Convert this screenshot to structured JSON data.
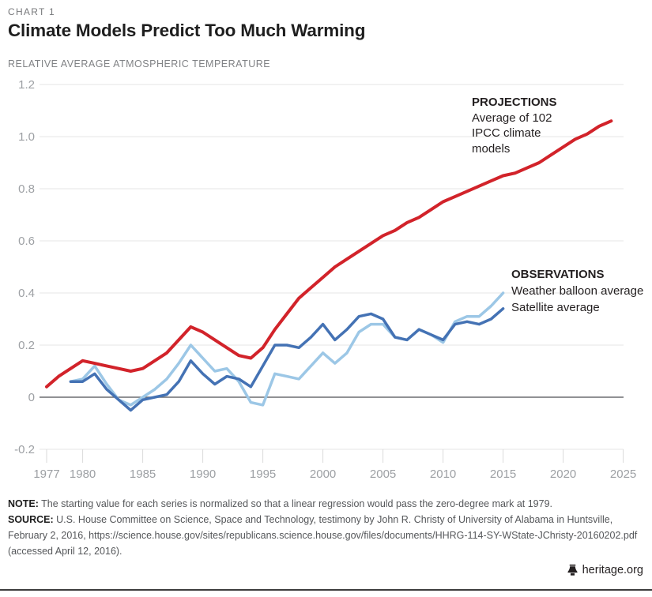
{
  "kicker": "CHART 1",
  "title": "Climate Models Predict Too Much Warming",
  "subtitle": "RELATIVE AVERAGE ATMOSPHERIC TEMPERATURE",
  "annotations": {
    "projections": {
      "heading": "PROJECTIONS",
      "lines": [
        "Average of 102",
        "IPCC climate",
        "models"
      ]
    },
    "observations": {
      "heading": "OBSERVATIONS",
      "lines": [
        "Weather balloon average",
        "Satellite average"
      ]
    }
  },
  "chart_data": {
    "type": "line",
    "title": "Climate Models Predict Too Much Warming",
    "ylabel": "RELATIVE AVERAGE ATMOSPHERIC TEMPERATURE",
    "xlabel": "",
    "ylim": [
      -0.2,
      1.2
    ],
    "xlim": [
      1976,
      2026
    ],
    "grid": "horizontal gridlines only, darker zero line",
    "legend_position": "inline annotations at line ends",
    "yticks": {
      "values": [
        1.2,
        1.0,
        0.8,
        0.6,
        0.4,
        0.2,
        0,
        -0.2
      ],
      "labels": [
        "1.2",
        "1.0",
        "0.8",
        "0.6",
        "0.4",
        "0.2",
        "0",
        "-0.2"
      ]
    },
    "xticks": [
      1977,
      1980,
      1985,
      1990,
      1995,
      2000,
      2005,
      2010,
      2015,
      2020,
      2025
    ],
    "colors": {
      "grid": "#e4e4e4",
      "zero_line": "#6b6d70",
      "tick_text": "#9da0a4"
    },
    "series": [
      {
        "id": "weather-balloon",
        "name": "Weather balloon average",
        "color": "#9cc7e6",
        "width": 3.5,
        "x": [
          1979,
          1980,
          1981,
          1982,
          1983,
          1984,
          1985,
          1986,
          1987,
          1988,
          1989,
          1990,
          1991,
          1992,
          1993,
          1994,
          1995,
          1996,
          1997,
          1998,
          1999,
          2000,
          2001,
          2002,
          2003,
          2004,
          2005,
          2006,
          2007,
          2008,
          2009,
          2010,
          2011,
          2012,
          2013,
          2014,
          2015
        ],
        "y": [
          0.06,
          0.07,
          0.12,
          0.05,
          -0.01,
          -0.03,
          0.0,
          0.03,
          0.07,
          0.13,
          0.2,
          0.15,
          0.1,
          0.11,
          0.06,
          -0.02,
          -0.03,
          0.09,
          0.08,
          0.07,
          0.12,
          0.17,
          0.13,
          0.17,
          0.25,
          0.28,
          0.28,
          0.23,
          0.22,
          0.26,
          0.24,
          0.21,
          0.29,
          0.31,
          0.31,
          0.35,
          0.4
        ]
      },
      {
        "id": "satellite",
        "name": "Satellite average",
        "color": "#4472b4",
        "width": 3.5,
        "x": [
          1979,
          1980,
          1981,
          1982,
          1983,
          1984,
          1985,
          1986,
          1987,
          1988,
          1989,
          1990,
          1991,
          1992,
          1993,
          1994,
          1995,
          1996,
          1997,
          1998,
          1999,
          2000,
          2001,
          2002,
          2003,
          2004,
          2005,
          2006,
          2007,
          2008,
          2009,
          2010,
          2011,
          2012,
          2013,
          2014,
          2015
        ],
        "y": [
          0.06,
          0.06,
          0.09,
          0.03,
          -0.01,
          -0.05,
          -0.01,
          0.0,
          0.01,
          0.06,
          0.14,
          0.09,
          0.05,
          0.08,
          0.07,
          0.04,
          0.12,
          0.2,
          0.2,
          0.19,
          0.23,
          0.28,
          0.22,
          0.26,
          0.31,
          0.32,
          0.3,
          0.23,
          0.22,
          0.26,
          0.24,
          0.22,
          0.28,
          0.29,
          0.28,
          0.3,
          0.34
        ]
      },
      {
        "id": "projections",
        "name": "Projections: average of 102 IPCC climate models",
        "color": "#d2232a",
        "width": 4,
        "x": [
          1977,
          1978,
          1979,
          1980,
          1981,
          1982,
          1983,
          1984,
          1985,
          1986,
          1987,
          1988,
          1989,
          1990,
          1991,
          1992,
          1993,
          1994,
          1995,
          1996,
          1997,
          1998,
          1999,
          2000,
          2001,
          2002,
          2003,
          2004,
          2005,
          2006,
          2007,
          2008,
          2009,
          2010,
          2011,
          2012,
          2013,
          2014,
          2015,
          2016,
          2017,
          2018,
          2019,
          2020,
          2021,
          2022,
          2023,
          2024
        ],
        "y": [
          0.04,
          0.08,
          0.11,
          0.14,
          0.13,
          0.12,
          0.11,
          0.1,
          0.11,
          0.14,
          0.17,
          0.22,
          0.27,
          0.25,
          0.22,
          0.19,
          0.16,
          0.15,
          0.19,
          0.26,
          0.32,
          0.38,
          0.42,
          0.46,
          0.5,
          0.53,
          0.56,
          0.59,
          0.62,
          0.64,
          0.67,
          0.69,
          0.72,
          0.75,
          0.77,
          0.79,
          0.81,
          0.83,
          0.85,
          0.86,
          0.88,
          0.9,
          0.93,
          0.96,
          0.99,
          1.01,
          1.04,
          1.06
        ]
      }
    ]
  },
  "footer": {
    "note_label": "NOTE:",
    "note_text": "The starting value for each series is normalized so that a linear regression would pass the zero-degree mark at 1979.",
    "source_label": "SOURCE:",
    "source_lines": [
      "U.S. House Committee on Science, Space and Technology, testimony by John R. Christy of University of Alabama in Huntsville,",
      "February 2, 2016, https://science.house.gov/sites/republicans.science.house.gov/files/documents/HHRG-114-SY-WState-JChristy-20160202.pdf",
      "(accessed April 12, 2016)."
    ]
  },
  "branding": {
    "site": "heritage.org",
    "icon": "liberty-bell-icon"
  }
}
